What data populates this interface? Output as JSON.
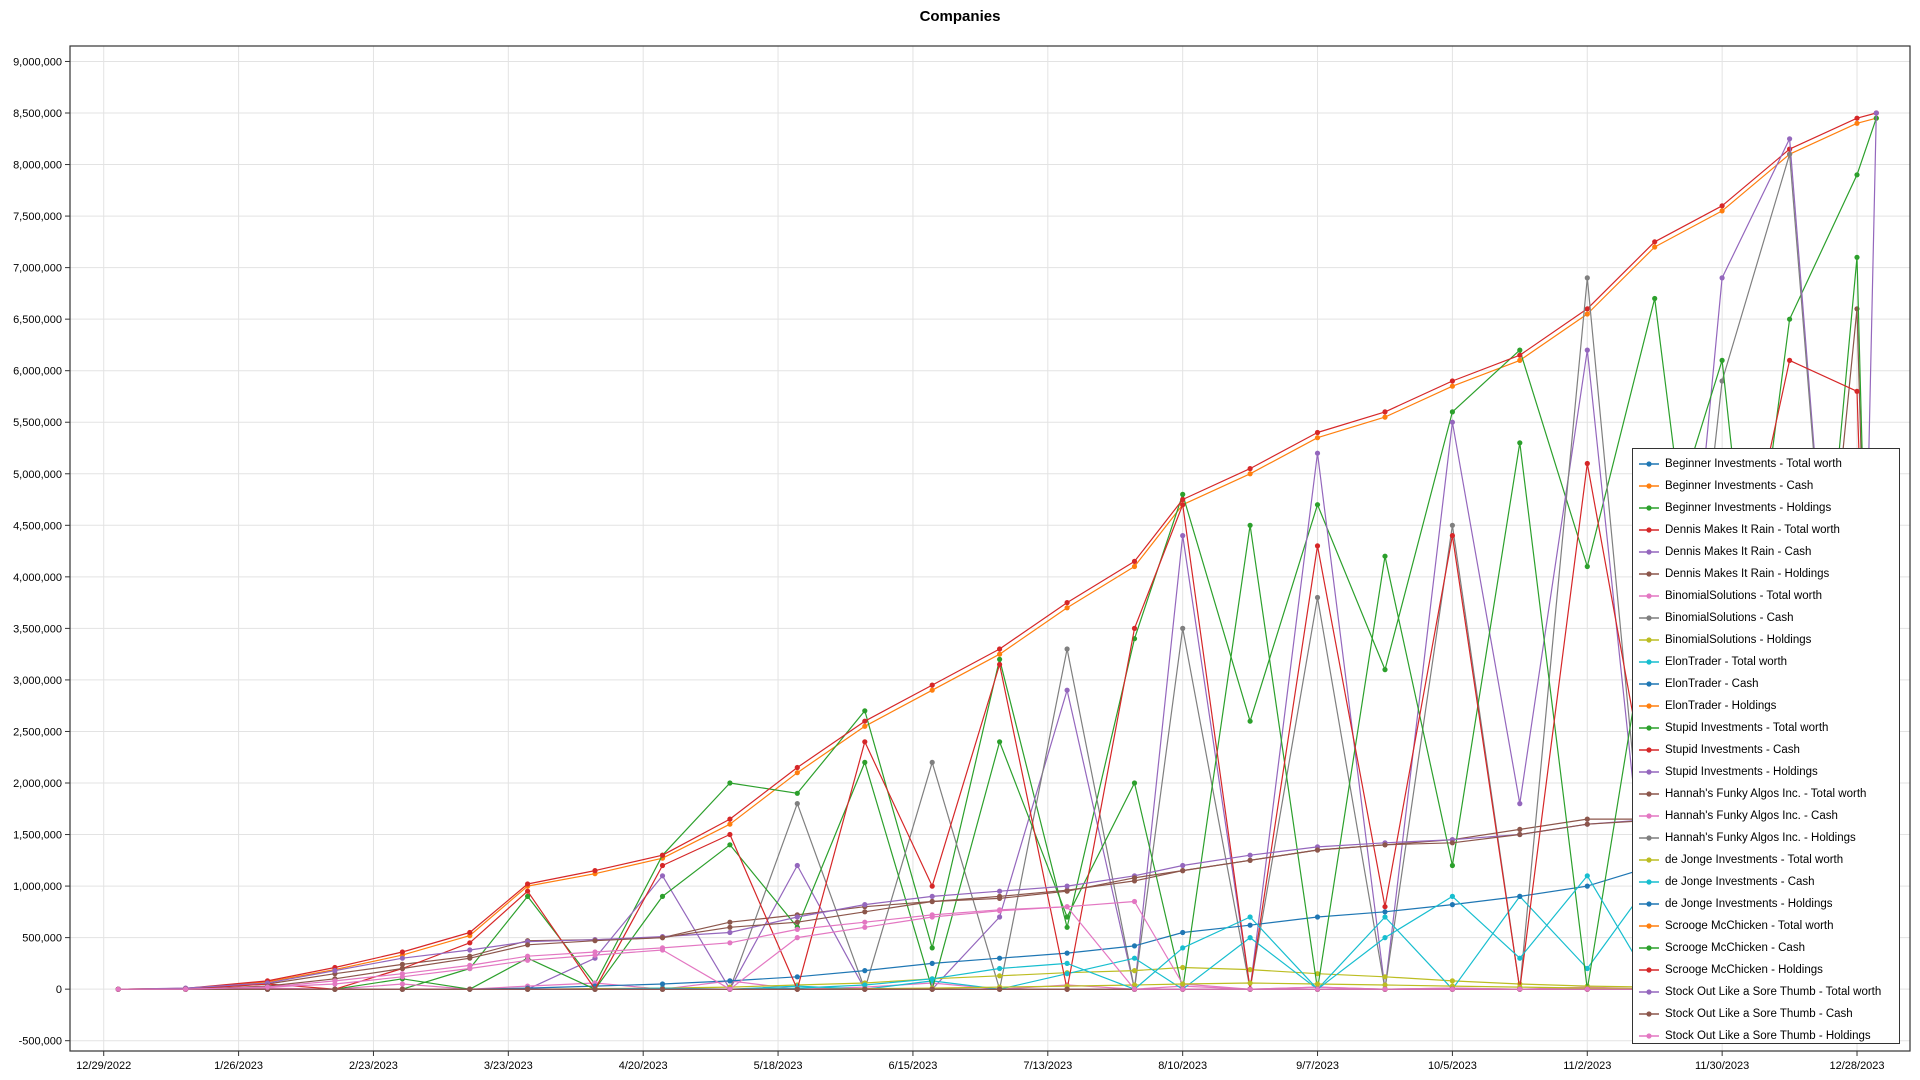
{
  "chart_data": {
    "type": "line",
    "title": "Companies",
    "xlabel": "",
    "ylabel": "",
    "x_ticks": [
      "12/29/2022",
      "1/26/2023",
      "2/23/2023",
      "3/23/2023",
      "4/20/2023",
      "5/18/2023",
      "6/15/2023",
      "7/13/2023",
      "8/10/2023",
      "9/7/2023",
      "10/5/2023",
      "11/2/2023",
      "11/30/2023",
      "12/28/2023"
    ],
    "y_ticks": [
      "-500,000",
      "0",
      "500,000",
      "1,000,000",
      "1,500,000",
      "2,000,000",
      "2,500,000",
      "3,000,000",
      "3,500,000",
      "4,000,000",
      "4,500,000",
      "5,000,000",
      "5,500,000",
      "6,000,000",
      "6,500,000",
      "7,000,000",
      "7,500,000",
      "8,000,000",
      "8,500,000",
      "9,000,000"
    ],
    "ylim": [
      -600000,
      9150000
    ],
    "xlim": [
      "12/22/2022",
      "1/8/2024"
    ],
    "grid": true,
    "legend_position": "bottom-right",
    "x": [
      "1/1/2023",
      "1/15/2023",
      "2/1/2023",
      "2/15/2023",
      "3/1/2023",
      "3/15/2023",
      "3/27/2023",
      "4/10/2023",
      "4/24/2023",
      "5/8/2023",
      "5/22/2023",
      "6/5/2023",
      "6/19/2023",
      "7/3/2023",
      "7/17/2023",
      "7/31/2023",
      "8/10/2023",
      "8/24/2023",
      "9/7/2023",
      "9/21/2023",
      "10/5/2023",
      "10/19/2023",
      "11/2/2023",
      "11/16/2023",
      "11/30/2023",
      "12/14/2023",
      "12/28/2023",
      "1/1/2024"
    ],
    "series": [
      {
        "name": "Beginner Investments - Total worth",
        "color": "#1f77b4",
        "values": [
          0,
          0,
          0,
          0,
          0,
          0,
          0,
          0,
          0,
          0,
          0,
          0,
          0,
          0,
          0,
          0,
          0,
          0,
          0,
          0,
          0,
          0,
          0,
          0,
          0,
          0,
          0,
          0
        ]
      },
      {
        "name": "Beginner Investments - Cash",
        "color": "#ff7f0e",
        "values": [
          0,
          5000,
          70000,
          190000,
          330000,
          520000,
          1000000,
          1120000,
          1270000,
          1600000,
          2100000,
          2550000,
          2900000,
          3250000,
          3700000,
          4100000,
          4700000,
          5000000,
          5350000,
          5550000,
          5850000,
          6100000,
          6550000,
          7200000,
          7550000,
          8100000,
          8400000,
          8450000
        ]
      },
      {
        "name": "Beginner Investments - Holdings",
        "color": "#2ca02c",
        "values": [
          0,
          0,
          0,
          0,
          0,
          200000,
          900000,
          50000,
          1300000,
          2000000,
          1900000,
          2700000,
          400000,
          3200000,
          600000,
          3400000,
          4800000,
          2600000,
          4700000,
          3100000,
          5600000,
          6200000,
          4100000,
          6700000,
          1500000,
          6500000,
          7900000,
          8450000
        ]
      },
      {
        "name": "Dennis Makes It Rain - Total worth",
        "color": "#d62728",
        "values": [
          0,
          8000,
          80000,
          210000,
          360000,
          550000,
          1020000,
          1150000,
          1300000,
          1650000,
          2150000,
          2600000,
          2950000,
          3300000,
          3750000,
          4150000,
          4750000,
          5050000,
          5400000,
          5600000,
          5900000,
          6150000,
          6600000,
          7250000,
          7600000,
          8150000,
          8450000,
          8500000
        ]
      },
      {
        "name": "Dennis Makes It Rain - Cash",
        "color": "#9467bd",
        "values": [
          0,
          0,
          0,
          0,
          0,
          0,
          0,
          300000,
          1100000,
          0,
          1200000,
          0,
          0,
          700000,
          2900000,
          0,
          4400000,
          0,
          5200000,
          0,
          5500000,
          1800000,
          6200000,
          0,
          6900000,
          8250000,
          0,
          8500000
        ]
      },
      {
        "name": "Dennis Makes It Rain - Holdings",
        "color": "#8c564b",
        "values": [
          0,
          5000,
          50000,
          150000,
          240000,
          320000,
          470000,
          480000,
          500000,
          650000,
          720000,
          800000,
          850000,
          900000,
          960000,
          1050000,
          1150000,
          1250000,
          1350000,
          1400000,
          1450000,
          1550000,
          1650000,
          1650000,
          1700000,
          0,
          6600000,
          0
        ]
      },
      {
        "name": "BinomialSolutions - Total worth",
        "color": "#e377c2",
        "values": [
          0,
          0,
          10000,
          0,
          50000,
          0,
          30000,
          60000,
          0,
          80000,
          0,
          20000,
          60000,
          0,
          40000,
          0,
          30000,
          0,
          20000,
          0,
          10000,
          0,
          20000,
          0,
          10000,
          0,
          20000,
          0
        ]
      },
      {
        "name": "BinomialSolutions - Cash",
        "color": "#7f7f7f",
        "values": [
          0,
          0,
          0,
          0,
          0,
          0,
          0,
          0,
          0,
          0,
          1800000,
          0,
          2200000,
          0,
          3300000,
          0,
          3500000,
          0,
          3800000,
          0,
          4500000,
          0,
          6900000,
          0,
          5900000,
          8100000,
          0,
          0
        ]
      },
      {
        "name": "BinomialSolutions - Holdings",
        "color": "#bcbd22",
        "values": [
          0,
          0,
          0,
          0,
          0,
          0,
          0,
          5000,
          10000,
          20000,
          40000,
          60000,
          100000,
          130000,
          160000,
          180000,
          210000,
          190000,
          150000,
          120000,
          80000,
          50000,
          30000,
          20000,
          10000,
          5000,
          0,
          0
        ]
      },
      {
        "name": "ElonTrader - Total worth",
        "color": "#17becf",
        "values": [
          0,
          0,
          0,
          0,
          0,
          0,
          0,
          0,
          10000,
          0,
          30000,
          0,
          80000,
          0,
          150000,
          300000,
          0,
          500000,
          0,
          700000,
          0,
          900000,
          200000,
          1100000,
          0,
          1300000,
          0,
          0
        ]
      },
      {
        "name": "ElonTrader - Cash",
        "color": "#1f77b4",
        "values": [
          0,
          0,
          0,
          0,
          0,
          0,
          10000,
          30000,
          50000,
          80000,
          120000,
          180000,
          250000,
          300000,
          350000,
          420000,
          550000,
          620000,
          700000,
          750000,
          820000,
          900000,
          1000000,
          1200000,
          1300000,
          0,
          1350000,
          0
        ]
      },
      {
        "name": "ElonTrader - Holdings",
        "color": "#ff7f0e",
        "values": [
          0,
          0,
          0,
          0,
          0,
          0,
          0,
          0,
          0,
          0,
          0,
          0,
          0,
          0,
          0,
          0,
          0,
          0,
          0,
          0,
          0,
          0,
          0,
          0,
          0,
          0,
          0,
          0
        ]
      },
      {
        "name": "Stupid Investments - Total worth",
        "color": "#2ca02c",
        "values": [
          0,
          0,
          0,
          0,
          100000,
          0,
          300000,
          0,
          900000,
          1400000,
          600000,
          2200000,
          0,
          2400000,
          700000,
          2000000,
          0,
          4500000,
          0,
          4200000,
          1200000,
          5300000,
          0,
          4000000,
          6100000,
          0,
          7100000,
          0
        ]
      },
      {
        "name": "Stupid Investments - Cash",
        "color": "#d62728",
        "values": [
          0,
          0,
          50000,
          0,
          200000,
          450000,
          950000,
          0,
          1200000,
          1500000,
          0,
          2400000,
          1000000,
          3150000,
          0,
          3500000,
          4700000,
          0,
          4300000,
          800000,
          4400000,
          0,
          5100000,
          1500000,
          3100000,
          6100000,
          5800000,
          0
        ]
      },
      {
        "name": "Stupid Investments - Holdings",
        "color": "#9467bd",
        "values": [
          0,
          10000,
          60000,
          180000,
          300000,
          380000,
          460000,
          480000,
          510000,
          550000,
          700000,
          820000,
          900000,
          950000,
          1000000,
          1100000,
          1200000,
          1300000,
          1380000,
          1420000,
          1450000,
          1500000,
          1600000,
          1650000,
          1700000,
          0,
          0,
          0
        ]
      },
      {
        "name": "Hannah's Funky Algos Inc. - Total worth",
        "color": "#8c564b",
        "values": [
          0,
          0,
          30000,
          100000,
          200000,
          300000,
          430000,
          470000,
          500000,
          600000,
          650000,
          750000,
          850000,
          880000,
          950000,
          1080000,
          1150000,
          1250000,
          1350000,
          1400000,
          1420000,
          1500000,
          1600000,
          1640000,
          1650000,
          1660000,
          1700000,
          0
        ]
      },
      {
        "name": "Hannah's Funky Algos Inc. - Cash",
        "color": "#e377c2",
        "values": [
          0,
          0,
          20000,
          80000,
          150000,
          230000,
          320000,
          360000,
          400000,
          450000,
          580000,
          650000,
          720000,
          770000,
          800000,
          850000,
          50000,
          0,
          20000,
          0,
          10000,
          0,
          5000,
          0,
          0,
          0,
          0,
          0
        ]
      },
      {
        "name": "Hannah's Funky Algos Inc. - Holdings",
        "color": "#7f7f7f",
        "values": [
          0,
          0,
          0,
          0,
          0,
          0,
          0,
          0,
          0,
          0,
          0,
          0,
          0,
          0,
          0,
          0,
          0,
          0,
          0,
          0,
          0,
          0,
          0,
          0,
          0,
          0,
          0,
          0
        ]
      },
      {
        "name": "de Jonge Investments - Total worth",
        "color": "#bcbd22",
        "values": [
          0,
          0,
          0,
          0,
          0,
          0,
          0,
          0,
          0,
          0,
          0,
          5000,
          10000,
          20000,
          30000,
          40000,
          50000,
          60000,
          50000,
          40000,
          30000,
          20000,
          10000,
          5000,
          0,
          0,
          0,
          0
        ]
      },
      {
        "name": "de Jonge Investments - Cash",
        "color": "#17becf",
        "values": [
          0,
          0,
          0,
          0,
          0,
          0,
          0,
          0,
          0,
          0,
          10000,
          40000,
          100000,
          200000,
          250000,
          0,
          400000,
          700000,
          0,
          500000,
          900000,
          300000,
          1100000,
          0,
          0,
          0,
          0,
          0
        ]
      },
      {
        "name": "de Jonge Investments - Holdings",
        "color": "#1f77b4",
        "values": [
          0,
          0,
          0,
          0,
          0,
          0,
          0,
          0,
          0,
          0,
          0,
          0,
          0,
          0,
          0,
          0,
          0,
          0,
          0,
          0,
          0,
          0,
          0,
          0,
          0,
          0,
          0,
          0
        ]
      },
      {
        "name": "Scrooge McChicken - Total worth",
        "color": "#ff7f0e",
        "values": [
          0,
          0,
          0,
          0,
          0,
          0,
          0,
          0,
          0,
          0,
          0,
          0,
          0,
          0,
          0,
          0,
          0,
          0,
          0,
          0,
          0,
          0,
          0,
          0,
          0,
          0,
          0,
          0
        ]
      },
      {
        "name": "Scrooge McChicken - Cash",
        "color": "#2ca02c",
        "values": [
          0,
          0,
          0,
          0,
          0,
          0,
          0,
          0,
          0,
          0,
          0,
          0,
          0,
          0,
          0,
          0,
          0,
          0,
          0,
          0,
          0,
          0,
          0,
          0,
          0,
          0,
          0,
          0
        ]
      },
      {
        "name": "Scrooge McChicken - Holdings",
        "color": "#d62728",
        "values": [
          0,
          0,
          0,
          0,
          0,
          0,
          0,
          0,
          0,
          0,
          0,
          0,
          0,
          0,
          0,
          0,
          0,
          0,
          0,
          0,
          0,
          0,
          0,
          0,
          0,
          0,
          0,
          0
        ]
      },
      {
        "name": "Stock Out Like a Sore Thumb - Total worth",
        "color": "#9467bd",
        "values": [
          0,
          0,
          0,
          0,
          0,
          0,
          0,
          0,
          0,
          0,
          0,
          0,
          0,
          0,
          0,
          0,
          0,
          0,
          0,
          0,
          0,
          0,
          0,
          0,
          0,
          0,
          0,
          0
        ]
      },
      {
        "name": "Stock Out Like a Sore Thumb - Cash",
        "color": "#8c564b",
        "values": [
          0,
          0,
          0,
          0,
          0,
          0,
          0,
          0,
          0,
          0,
          0,
          0,
          0,
          0,
          0,
          0,
          0,
          0,
          0,
          0,
          0,
          0,
          0,
          0,
          0,
          0,
          0,
          0
        ]
      },
      {
        "name": "Stock Out Like a Sore Thumb - Holdings",
        "color": "#e377c2",
        "values": [
          0,
          0,
          20000,
          50000,
          120000,
          200000,
          280000,
          330000,
          380000,
          0,
          500000,
          600000,
          700000,
          760000,
          800000,
          0,
          0,
          0,
          0,
          0,
          0,
          0,
          0,
          0,
          0,
          0,
          0,
          0
        ]
      }
    ]
  }
}
